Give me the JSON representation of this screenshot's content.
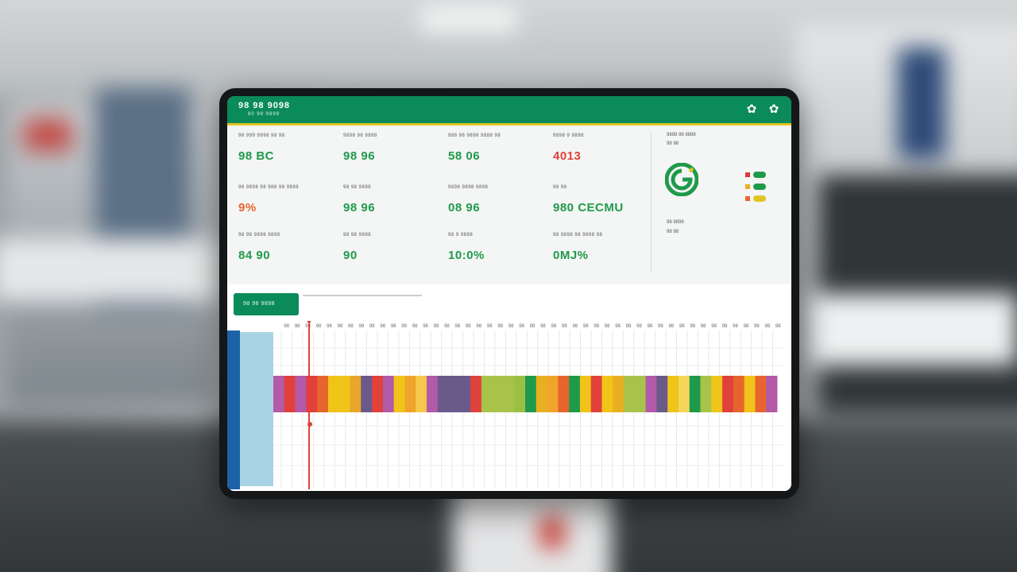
{
  "header": {
    "title": "98 98 9098",
    "subtitle": "80 98 9898"
  },
  "metrics": [
    {
      "label": "98 999 9998 98 98",
      "value": "98 BC",
      "color": "#1f9a4a"
    },
    {
      "label": "9898 98 9898",
      "value": "98 96",
      "color": "#1f9a4a"
    },
    {
      "label": "988 98 9898 9888 98",
      "value": "58 06",
      "color": "#1f9a4a"
    },
    {
      "label": "9898 9 9898",
      "value": "4013",
      "color": "#e0413a"
    },
    {
      "label": "98 9898 98 988 98 9898",
      "value": "9%",
      "color": "#e8642e"
    },
    {
      "label": "98 98 9898",
      "value": "98 96",
      "color": "#1f9a4a"
    },
    {
      "label": "9898 9898 9898",
      "value": "08 96",
      "color": "#1f9a4a"
    },
    {
      "label": "98 98",
      "value": "980 CECMU",
      "color": "#1f9a4a"
    },
    {
      "label": "98 98 9898 9898",
      "value": "84 90",
      "color": "#1f9a4a"
    },
    {
      "label": "98 98 9898",
      "value": "90",
      "color": "#1f9a4a"
    },
    {
      "label": "98 9 9898",
      "value": "10:0%",
      "color": "#1f9a4a"
    },
    {
      "label": "98 9898 98 9898 98",
      "value": "0MJ%",
      "color": "#1f9a4a"
    }
  ],
  "side_panel": {
    "top_label": "9898 98 9898",
    "sub_label": "98 98",
    "bottom_label": "98 9898",
    "bottom_sub": "98 98",
    "legend": [
      {
        "square": "#d93a3a",
        "pill": "#1f9a4a"
      },
      {
        "square": "#e8b020",
        "pill": "#1f9a4a"
      },
      {
        "square": "#e8642e",
        "pill": "#e3c625"
      }
    ]
  },
  "controls": {
    "button_label": "98 98 9898"
  },
  "timeline": {
    "tick_labels": [
      "98",
      "98",
      "98",
      "98",
      "98",
      "98",
      "98",
      "98",
      "98",
      "98",
      "98",
      "98",
      "98",
      "98",
      "98",
      "98",
      "98",
      "98",
      "98",
      "98",
      "98",
      "98",
      "98",
      "98",
      "98",
      "98",
      "98",
      "98",
      "98",
      "98",
      "98",
      "98",
      "98",
      "98",
      "98",
      "98",
      "98",
      "98",
      "98",
      "98",
      "98",
      "98",
      "98",
      "98",
      "98",
      "98",
      "98"
    ],
    "segments": [
      "#b35aa8",
      "#e0413a",
      "#b35aa8",
      "#e0413a",
      "#e8642e",
      "#f0c419",
      "#f0c419",
      "#e8a62a",
      "#6a5a8a",
      "#e0413a",
      "#b35aa8",
      "#f0c419",
      "#f0a52a",
      "#f5c74a",
      "#b35aa8",
      "#6a5a8a",
      "#6a5a8a",
      "#6a5a8a",
      "#e0413a",
      "#a8c34a",
      "#a8c34a",
      "#a8c34a",
      "#9bbf45",
      "#1f9a4a",
      "#e8b020",
      "#f0a52a",
      "#e8642e",
      "#1f9a4a",
      "#f0c419",
      "#e0413a",
      "#f0c419",
      "#e8b020",
      "#a8c34a",
      "#a8c34a",
      "#b35aa8",
      "#6a5a8a",
      "#f0c419",
      "#f5d55a",
      "#1f9a4a",
      "#a8c34a",
      "#f0c419",
      "#e0413a",
      "#e8642e",
      "#f0c419",
      "#e8642e",
      "#b35aa8"
    ],
    "marker_color": "#e0413a"
  }
}
